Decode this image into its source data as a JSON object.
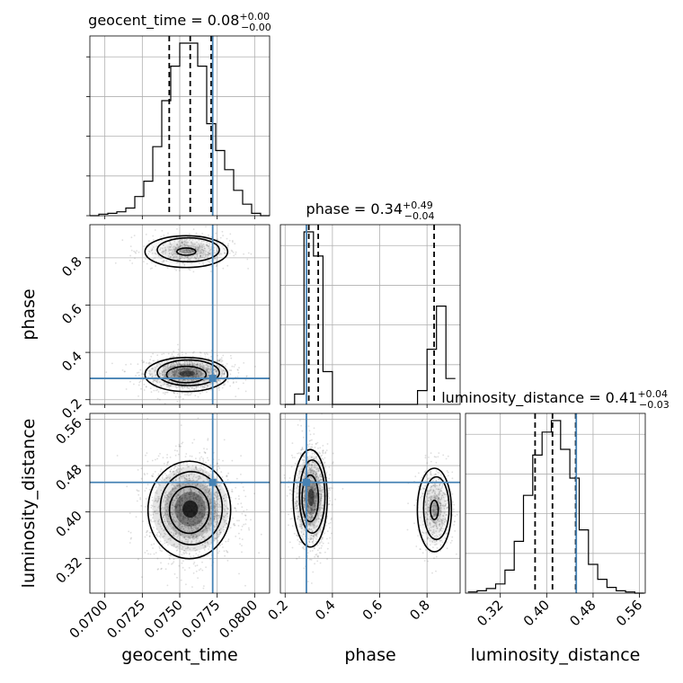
{
  "chart_data": {
    "type": "corner",
    "colors": {
      "truth": "#4682b4",
      "hist": "#000000",
      "grid": "#b0b0b0",
      "samples": "#6b6b6b"
    },
    "parameters": [
      "geocent_time",
      "phase",
      "luminosity_distance"
    ],
    "truths": {
      "geocent_time": 0.0772,
      "phase": 0.29,
      "luminosity_distance": 0.451
    },
    "quantiles": {
      "geocent_time": [
        0.0743,
        0.0757,
        0.0771
      ],
      "phase": [
        0.3,
        0.34,
        0.83
      ],
      "luminosity_distance": [
        0.38,
        0.41,
        0.45
      ]
    },
    "titles": {
      "geocent_time": {
        "name": "geocent_time",
        "median": "0.08",
        "plus": "+0.00",
        "minus": "−0.00"
      },
      "phase": {
        "name": "phase",
        "median": "0.34",
        "plus": "+0.49",
        "minus": "−0.04"
      },
      "luminosity_distance": {
        "name": "luminosity_distance",
        "median": "0.41",
        "plus": "+0.04",
        "minus": "−0.03"
      }
    },
    "xlabels": {
      "geocent_time": "geocent_time",
      "phase": "phase",
      "luminosity_distance": "luminosity_distance"
    },
    "ylabels": {
      "phase": "phase",
      "luminosity_distance": "luminosity_distance"
    },
    "ranges": {
      "geocent_time": [
        0.069,
        0.081
      ],
      "phase": [
        0.18,
        0.94
      ],
      "luminosity_distance": [
        0.26,
        0.57
      ]
    },
    "ticks": {
      "geocent_time": [
        "0.0700",
        "0.0725",
        "0.0750",
        "0.0775",
        "0.0800"
      ],
      "phase": [
        "0.2",
        "0.4",
        "0.6",
        "0.8"
      ],
      "luminosity_distance": [
        "0.32",
        "0.40",
        "0.48",
        "0.56"
      ]
    },
    "histograms": {
      "geocent_time": {
        "edges": [
          0.069,
          0.0696,
          0.0702,
          0.0708,
          0.0714,
          0.072,
          0.0726,
          0.0732,
          0.0738,
          0.0744,
          0.075,
          0.0756,
          0.0762,
          0.0768,
          0.0774,
          0.078,
          0.0786,
          0.0792,
          0.0798,
          0.0804,
          0.081
        ],
        "counts": [
          0,
          2,
          3,
          5,
          10,
          25,
          45,
          90,
          150,
          195,
          225,
          225,
          195,
          120,
          85,
          60,
          33,
          15,
          3,
          0
        ]
      },
      "phase": {
        "edges": [
          0.2,
          0.24,
          0.28,
          0.32,
          0.36,
          0.4,
          0.44,
          0.48,
          0.52,
          0.56,
          0.6,
          0.64,
          0.68,
          0.72,
          0.76,
          0.8,
          0.84,
          0.88,
          0.92
        ],
        "counts": [
          0,
          30,
          500,
          430,
          95,
          0,
          0,
          0,
          0,
          0,
          0,
          0,
          0,
          0,
          40,
          160,
          285,
          75
        ]
      },
      "luminosity_distance": {
        "edges": [
          0.264,
          0.28,
          0.296,
          0.312,
          0.328,
          0.344,
          0.36,
          0.376,
          0.392,
          0.408,
          0.424,
          0.44,
          0.456,
          0.472,
          0.488,
          0.504,
          0.52,
          0.536,
          0.552,
          0.568
        ],
        "counts": [
          1,
          2,
          4,
          8,
          20,
          45,
          85,
          120,
          140,
          150,
          125,
          100,
          55,
          25,
          12,
          5,
          2,
          1,
          0
        ]
      }
    },
    "clusters": {
      "phase_vs_geocent_time": [
        {
          "mx": 0.0755,
          "my": 0.31,
          "sx": 0.00115,
          "sy": 0.03,
          "weight": 0.7
        },
        {
          "mx": 0.0755,
          "my": 0.83,
          "sx": 0.00115,
          "sy": 0.028,
          "weight": 0.3
        }
      ],
      "luminosity_distance_vs_geocent_time": [
        {
          "mx": 0.0757,
          "my": 0.405,
          "sx": 0.00115,
          "sy": 0.035,
          "weight": 1.0
        }
      ],
      "luminosity_distance_vs_phase": [
        {
          "mx": 0.31,
          "my": 0.425,
          "sx": 0.03,
          "sy": 0.035,
          "weight": 0.7
        },
        {
          "mx": 0.835,
          "my": 0.405,
          "sx": 0.03,
          "sy": 0.03,
          "weight": 0.3
        }
      ]
    }
  }
}
